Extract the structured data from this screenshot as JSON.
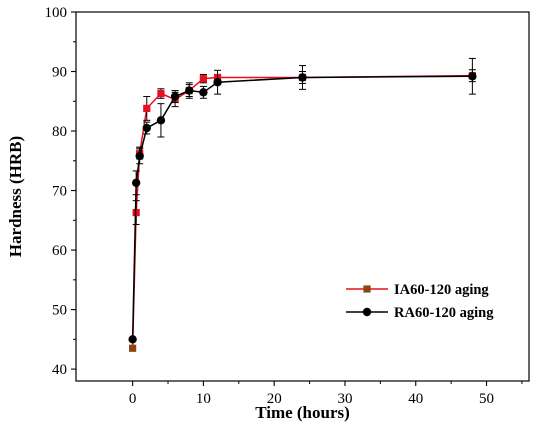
{
  "chart_data": {
    "type": "line",
    "title": "",
    "xlabel": "Time (hours)",
    "ylabel": "Hardness (HRB)",
    "xlim": [
      -8,
      56
    ],
    "ylim": [
      38,
      100
    ],
    "xticks": [
      0,
      10,
      20,
      30,
      40,
      50
    ],
    "yticks": [
      40,
      50,
      60,
      70,
      80,
      90,
      100
    ],
    "xtick_labels": [
      "0",
      "10",
      "20",
      "30",
      "40",
      "50"
    ],
    "ytick_labels": [
      "40",
      "50",
      "60",
      "70",
      "80",
      "90",
      "100"
    ],
    "grid": false,
    "legend_position": "lower-right",
    "series": [
      {
        "name": "IA60-120 aging",
        "color": "#e8101c",
        "legend_marker_color": "#8b4513",
        "marker": "square",
        "x": [
          0,
          0.5,
          1,
          2,
          4,
          6,
          8,
          10,
          12,
          24,
          48
        ],
        "y": [
          43.5,
          66.3,
          76.3,
          83.8,
          86.3,
          85.3,
          86.8,
          88.8,
          89.0,
          89.0,
          89.3
        ],
        "err": [
          0,
          2.0,
          1.0,
          2.0,
          0.8,
          1.2,
          1.3,
          0.7,
          0.5,
          1.0,
          1.0
        ]
      },
      {
        "name": "RA60-120 aging",
        "color": "#000000",
        "legend_marker_color": "#000000",
        "marker": "circle",
        "x": [
          0,
          0.5,
          1,
          2,
          4,
          6,
          8,
          10,
          12,
          24,
          48
        ],
        "y": [
          45.0,
          71.3,
          75.8,
          80.5,
          81.8,
          85.8,
          86.8,
          86.5,
          88.2,
          89.0,
          89.2
        ],
        "err": [
          0,
          2.0,
          1.3,
          1.0,
          2.8,
          1.0,
          1.0,
          1.0,
          2.0,
          2.0,
          3.0
        ]
      }
    ]
  }
}
